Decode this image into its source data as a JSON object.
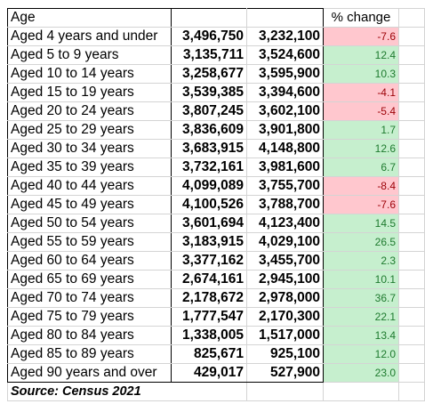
{
  "table": {
    "header": {
      "age_label": "Age",
      "pct_label": "% change"
    },
    "rows": [
      {
        "label": "Aged 4 years and under",
        "v2021": "3,496,750",
        "v2016": "3,232,100",
        "pct": "-7.6",
        "sign": "neg"
      },
      {
        "label": "Aged 5 to 9 years",
        "v2021": "3,135,711",
        "v2016": "3,524,600",
        "pct": "12.4",
        "sign": "pos"
      },
      {
        "label": "Aged 10 to 14 years",
        "v2021": "3,258,677",
        "v2016": "3,595,900",
        "pct": "10.3",
        "sign": "pos"
      },
      {
        "label": "Aged 15 to 19 years",
        "v2021": "3,539,385",
        "v2016": "3,394,600",
        "pct": "-4.1",
        "sign": "neg"
      },
      {
        "label": "Aged 20 to 24 years",
        "v2021": "3,807,245",
        "v2016": "3,602,100",
        "pct": "-5.4",
        "sign": "neg"
      },
      {
        "label": "Aged 25 to 29 years",
        "v2021": "3,836,609",
        "v2016": "3,901,800",
        "pct": "1.7",
        "sign": "pos"
      },
      {
        "label": "Aged 30 to 34 years",
        "v2021": "3,683,915",
        "v2016": "4,148,800",
        "pct": "12.6",
        "sign": "pos"
      },
      {
        "label": "Aged 35 to 39 years",
        "v2021": "3,732,161",
        "v2016": "3,981,600",
        "pct": "6.7",
        "sign": "pos"
      },
      {
        "label": "Aged 40 to 44 years",
        "v2021": "4,099,089",
        "v2016": "3,755,700",
        "pct": "-8.4",
        "sign": "neg"
      },
      {
        "label": "Aged 45 to 49 years",
        "v2021": "4,100,526",
        "v2016": "3,788,700",
        "pct": "-7.6",
        "sign": "neg"
      },
      {
        "label": "Aged 50 to 54 years",
        "v2021": "3,601,694",
        "v2016": "4,123,400",
        "pct": "14.5",
        "sign": "pos"
      },
      {
        "label": "Aged 55 to 59 years",
        "v2021": "3,183,915",
        "v2016": "4,029,100",
        "pct": "26.5",
        "sign": "pos"
      },
      {
        "label": "Aged 60 to 64 years",
        "v2021": "3,377,162",
        "v2016": "3,455,700",
        "pct": "2.3",
        "sign": "pos"
      },
      {
        "label": "Aged 65 to 69 years",
        "v2021": "2,674,161",
        "v2016": "2,945,100",
        "pct": "10.1",
        "sign": "pos"
      },
      {
        "label": "Aged 70 to 74 years",
        "v2021": "2,178,672",
        "v2016": "2,978,000",
        "pct": "36.7",
        "sign": "pos"
      },
      {
        "label": "Aged 75 to 79 years",
        "v2021": "1,777,547",
        "v2016": "2,170,300",
        "pct": "22.1",
        "sign": "pos"
      },
      {
        "label": "Aged 80 to 84 years",
        "v2021": "1,338,005",
        "v2016": "1,517,000",
        "pct": "13.4",
        "sign": "pos"
      },
      {
        "label": "Aged 85 to 89 years",
        "v2021": "825,671",
        "v2016": "925,100",
        "pct": "12.0",
        "sign": "pos"
      },
      {
        "label": "Aged 90 years and over",
        "v2021": "429,017",
        "v2016": "527,900",
        "pct": "23.0",
        "sign": "pos"
      }
    ],
    "source": "Source: Census 2021"
  },
  "colors": {
    "positive_fill": "#c6efce",
    "positive_text": "#1e7a2e",
    "negative_fill": "#ffc7ce",
    "negative_text": "#9c0006",
    "gridline": "#d4d4d4"
  }
}
